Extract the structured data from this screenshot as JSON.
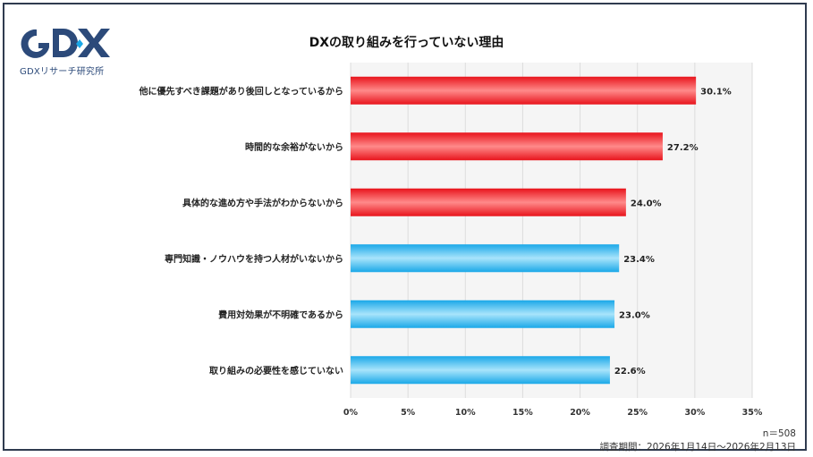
{
  "header": {
    "logo_text": "GDX",
    "logo_subtitle": "GDXリサーチ研究所",
    "title": "DXの取り組みを行っていない理由"
  },
  "footer": {
    "sample": "n＝508",
    "period": "調査期間：2026年1月14日〜2026年2月13日"
  },
  "colors": {
    "red": "#e8141c",
    "blue": "#1aa8e8",
    "plot_bg": "#f5f5f5",
    "grid": "#dcdcdc"
  },
  "chart_data": {
    "type": "bar",
    "orientation": "horizontal",
    "title": "DXの取り組みを行っていない理由",
    "categories": [
      "他に優先すべき課題があり後回しとなっているから",
      "時間的な余裕がないから",
      "具体的な進め方や手法がわからないから",
      "専門知識・ノウハウを持つ人材がいないから",
      "費用対効果が不明確であるから",
      "取り組みの必要性を感じていない"
    ],
    "values": [
      30.1,
      27.2,
      24.0,
      23.4,
      23.0,
      22.6
    ],
    "value_labels": [
      "30.1%",
      "27.2%",
      "24.0%",
      "23.4%",
      "23.0%",
      "22.6%"
    ],
    "bar_colors": [
      "red",
      "red",
      "red",
      "blue",
      "blue",
      "blue"
    ],
    "xlim": [
      0,
      35
    ],
    "xticks": [
      0,
      5,
      10,
      15,
      20,
      25,
      30,
      35
    ],
    "xtick_labels": [
      "0%",
      "5%",
      "10%",
      "15%",
      "20%",
      "25%",
      "30%",
      "35%"
    ],
    "grid": true,
    "legend": "none"
  }
}
